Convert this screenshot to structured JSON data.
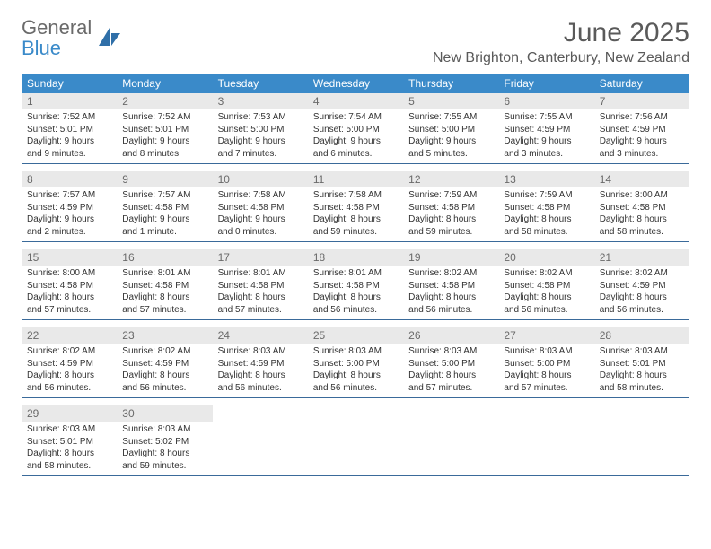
{
  "brand": {
    "general": "General",
    "blue": "Blue",
    "icon_color": "#2f6fa8"
  },
  "header": {
    "title": "June 2025",
    "location": "New Brighton, Canterbury, New Zealand"
  },
  "colors": {
    "header_bar": "#3a8ac9",
    "day_num_bg": "#e9e9e9",
    "week_border": "#3a6a9a",
    "text_muted": "#6a6a6a"
  },
  "daysOfWeek": [
    "Sunday",
    "Monday",
    "Tuesday",
    "Wednesday",
    "Thursday",
    "Friday",
    "Saturday"
  ],
  "weeks": [
    [
      {
        "n": "1",
        "sunrise": "7:52 AM",
        "sunset": "5:01 PM",
        "day": "9 hours and 9 minutes."
      },
      {
        "n": "2",
        "sunrise": "7:52 AM",
        "sunset": "5:01 PM",
        "day": "9 hours and 8 minutes."
      },
      {
        "n": "3",
        "sunrise": "7:53 AM",
        "sunset": "5:00 PM",
        "day": "9 hours and 7 minutes."
      },
      {
        "n": "4",
        "sunrise": "7:54 AM",
        "sunset": "5:00 PM",
        "day": "9 hours and 6 minutes."
      },
      {
        "n": "5",
        "sunrise": "7:55 AM",
        "sunset": "5:00 PM",
        "day": "9 hours and 5 minutes."
      },
      {
        "n": "6",
        "sunrise": "7:55 AM",
        "sunset": "4:59 PM",
        "day": "9 hours and 3 minutes."
      },
      {
        "n": "7",
        "sunrise": "7:56 AM",
        "sunset": "4:59 PM",
        "day": "9 hours and 3 minutes."
      }
    ],
    [
      {
        "n": "8",
        "sunrise": "7:57 AM",
        "sunset": "4:59 PM",
        "day": "9 hours and 2 minutes."
      },
      {
        "n": "9",
        "sunrise": "7:57 AM",
        "sunset": "4:58 PM",
        "day": "9 hours and 1 minute."
      },
      {
        "n": "10",
        "sunrise": "7:58 AM",
        "sunset": "4:58 PM",
        "day": "9 hours and 0 minutes."
      },
      {
        "n": "11",
        "sunrise": "7:58 AM",
        "sunset": "4:58 PM",
        "day": "8 hours and 59 minutes."
      },
      {
        "n": "12",
        "sunrise": "7:59 AM",
        "sunset": "4:58 PM",
        "day": "8 hours and 59 minutes."
      },
      {
        "n": "13",
        "sunrise": "7:59 AM",
        "sunset": "4:58 PM",
        "day": "8 hours and 58 minutes."
      },
      {
        "n": "14",
        "sunrise": "8:00 AM",
        "sunset": "4:58 PM",
        "day": "8 hours and 58 minutes."
      }
    ],
    [
      {
        "n": "15",
        "sunrise": "8:00 AM",
        "sunset": "4:58 PM",
        "day": "8 hours and 57 minutes."
      },
      {
        "n": "16",
        "sunrise": "8:01 AM",
        "sunset": "4:58 PM",
        "day": "8 hours and 57 minutes."
      },
      {
        "n": "17",
        "sunrise": "8:01 AM",
        "sunset": "4:58 PM",
        "day": "8 hours and 57 minutes."
      },
      {
        "n": "18",
        "sunrise": "8:01 AM",
        "sunset": "4:58 PM",
        "day": "8 hours and 56 minutes."
      },
      {
        "n": "19",
        "sunrise": "8:02 AM",
        "sunset": "4:58 PM",
        "day": "8 hours and 56 minutes."
      },
      {
        "n": "20",
        "sunrise": "8:02 AM",
        "sunset": "4:58 PM",
        "day": "8 hours and 56 minutes."
      },
      {
        "n": "21",
        "sunrise": "8:02 AM",
        "sunset": "4:59 PM",
        "day": "8 hours and 56 minutes."
      }
    ],
    [
      {
        "n": "22",
        "sunrise": "8:02 AM",
        "sunset": "4:59 PM",
        "day": "8 hours and 56 minutes."
      },
      {
        "n": "23",
        "sunrise": "8:02 AM",
        "sunset": "4:59 PM",
        "day": "8 hours and 56 minutes."
      },
      {
        "n": "24",
        "sunrise": "8:03 AM",
        "sunset": "4:59 PM",
        "day": "8 hours and 56 minutes."
      },
      {
        "n": "25",
        "sunrise": "8:03 AM",
        "sunset": "5:00 PM",
        "day": "8 hours and 56 minutes."
      },
      {
        "n": "26",
        "sunrise": "8:03 AM",
        "sunset": "5:00 PM",
        "day": "8 hours and 57 minutes."
      },
      {
        "n": "27",
        "sunrise": "8:03 AM",
        "sunset": "5:00 PM",
        "day": "8 hours and 57 minutes."
      },
      {
        "n": "28",
        "sunrise": "8:03 AM",
        "sunset": "5:01 PM",
        "day": "8 hours and 58 minutes."
      }
    ],
    [
      {
        "n": "29",
        "sunrise": "8:03 AM",
        "sunset": "5:01 PM",
        "day": "8 hours and 58 minutes."
      },
      {
        "n": "30",
        "sunrise": "8:03 AM",
        "sunset": "5:02 PM",
        "day": "8 hours and 59 minutes."
      },
      null,
      null,
      null,
      null,
      null
    ]
  ],
  "labels": {
    "sunrise": "Sunrise: ",
    "sunset": "Sunset: ",
    "daylight": "Daylight: "
  }
}
